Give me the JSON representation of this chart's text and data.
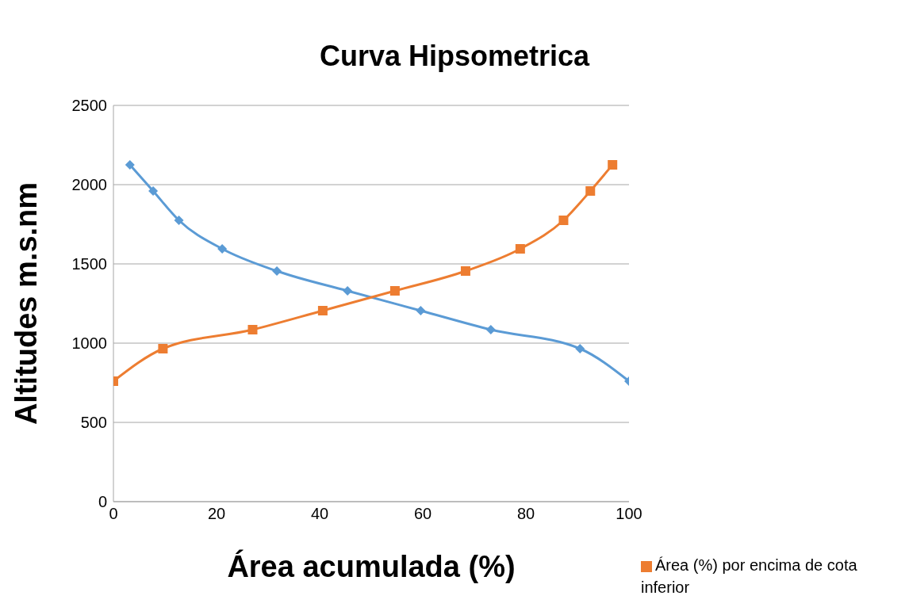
{
  "chart_data": {
    "type": "line",
    "title": "Curva Hipsometrica",
    "xlabel": "Área acumulada (%)",
    "ylabel": "Altitudes m.s.nm",
    "series": [
      {
        "color": "#5b9bd5",
        "marker": "diamond",
        "x": [
          3.2,
          7.7,
          12.7,
          21.1,
          31.7,
          45.4,
          59.6,
          73.2,
          90.5,
          100
        ],
        "values": [
          2125,
          1960,
          1775,
          1595,
          1455,
          1330,
          1205,
          1085,
          965,
          760
        ]
      },
      {
        "name": "Área (%) por encima de cota inferior",
        "color": "#ed7d31",
        "marker": "square",
        "x": [
          0,
          9.6,
          27.0,
          40.6,
          54.6,
          68.3,
          78.9,
          87.3,
          92.5,
          96.8
        ],
        "values": [
          760,
          965,
          1085,
          1205,
          1330,
          1455,
          1595,
          1775,
          1960,
          2125
        ]
      }
    ],
    "xlim": [
      0,
      100
    ],
    "xticks": [
      0,
      20,
      40,
      60,
      80,
      100
    ],
    "ylim": [
      0,
      2500
    ],
    "yticks": [
      0,
      500,
      1000,
      1500,
      2000,
      2500
    ],
    "grid": "y",
    "legend": "bottom right",
    "line_style": "solid"
  }
}
